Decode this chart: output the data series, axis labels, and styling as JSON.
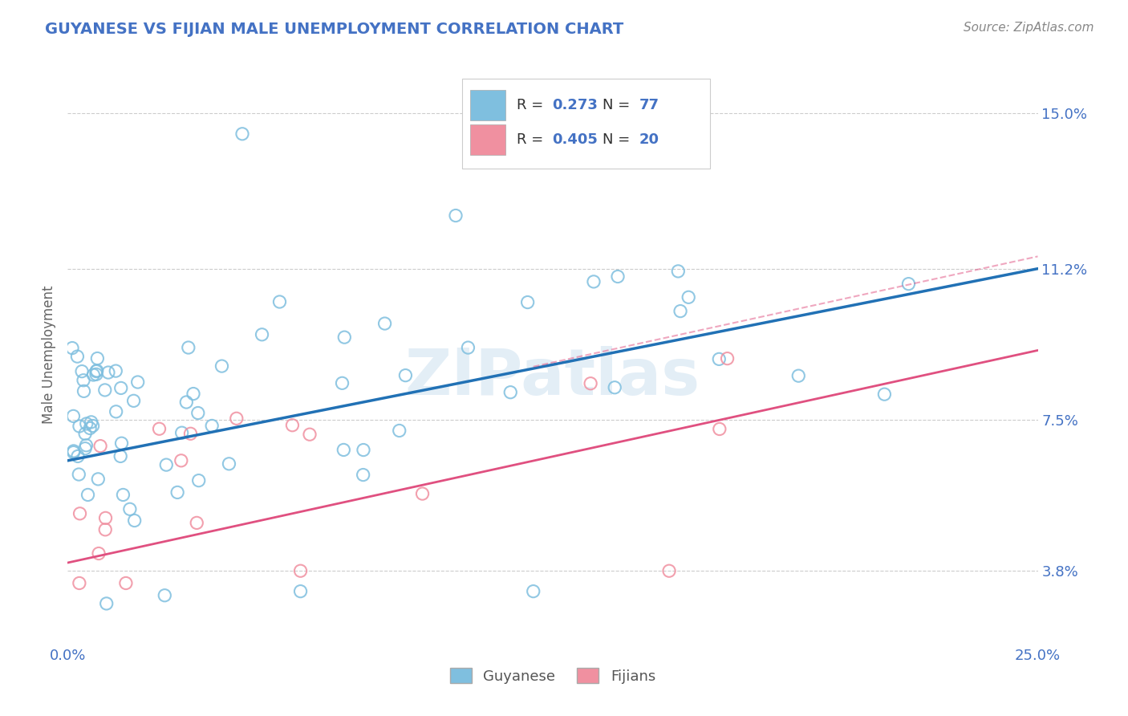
{
  "title": "GUYANESE VS FIJIAN MALE UNEMPLOYMENT CORRELATION CHART",
  "source_text": "Source: ZipAtlas.com",
  "ylabel": "Male Unemployment",
  "xlim": [
    0.0,
    0.25
  ],
  "ylim": [
    0.02,
    0.162
  ],
  "xtick_labels": [
    "0.0%",
    "25.0%"
  ],
  "xtick_positions": [
    0.0,
    0.25
  ],
  "ytick_labels": [
    "3.8%",
    "7.5%",
    "11.2%",
    "15.0%"
  ],
  "ytick_positions": [
    0.038,
    0.075,
    0.112,
    0.15
  ],
  "guyanese_R": "0.273",
  "guyanese_N": "77",
  "fijian_R": "0.405",
  "fijian_N": "20",
  "legend_label_guyanese": "Guyanese",
  "legend_label_fijian": "Fijians",
  "guyanese_color": "#7fbfdf",
  "fijian_color": "#f090a0",
  "trend_guyanese_color": "#2171b5",
  "trend_fijian_color": "#e05080",
  "background_color": "#ffffff",
  "watermark_text": "ZIPatlas",
  "title_color": "#4472c4",
  "axis_color": "#4472c4",
  "label_color": "#666666",
  "grid_color": "#cccccc",
  "g_trend_y0": 0.065,
  "g_trend_y1": 0.112,
  "f_trend_y0": 0.04,
  "f_trend_y1": 0.092
}
